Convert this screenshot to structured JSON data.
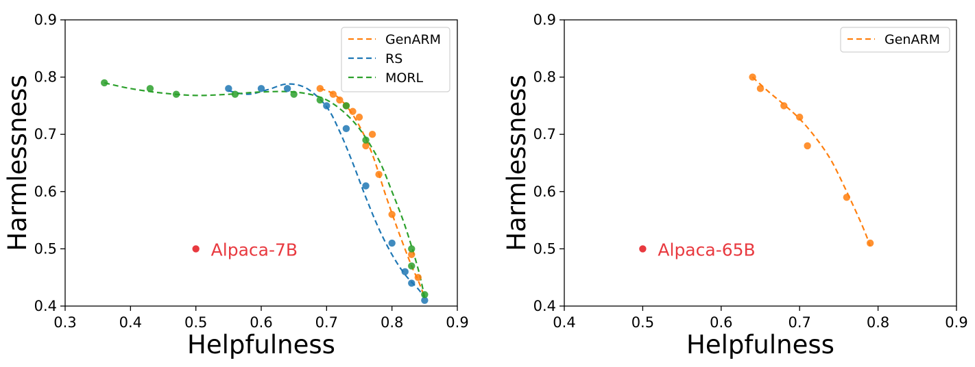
{
  "chart_data": [
    {
      "type": "scatter",
      "xlabel": "Helpfulness",
      "ylabel": "Harmlessness",
      "xlim": [
        0.3,
        0.9
      ],
      "ylim": [
        0.4,
        0.9
      ],
      "xticks": [
        0.3,
        0.4,
        0.5,
        0.6,
        0.7,
        0.8,
        0.9
      ],
      "yticks": [
        0.4,
        0.5,
        0.6,
        0.7,
        0.8,
        0.9
      ],
      "tick_labels_x": [
        "0.3",
        "0.4",
        "0.5",
        "0.6",
        "0.7",
        "0.8",
        "0.9"
      ],
      "tick_labels_y": [
        "0.4",
        "0.5",
        "0.6",
        "0.7",
        "0.8",
        "0.9"
      ],
      "grid": false,
      "legend": "top-right",
      "series": [
        {
          "name": "GenARM",
          "color": "#ff7f0e",
          "x": [
            0.69,
            0.71,
            0.72,
            0.73,
            0.74,
            0.75,
            0.76,
            0.77,
            0.78,
            0.8,
            0.83,
            0.84
          ],
          "y": [
            0.78,
            0.77,
            0.76,
            0.75,
            0.74,
            0.73,
            0.68,
            0.7,
            0.63,
            0.56,
            0.49,
            0.45
          ],
          "fit": [
            [
              0.69,
              0.78
            ],
            [
              0.71,
              0.771
            ],
            [
              0.73,
              0.75
            ],
            [
              0.75,
              0.715
            ],
            [
              0.77,
              0.665
            ],
            [
              0.79,
              0.595
            ],
            [
              0.81,
              0.53
            ],
            [
              0.83,
              0.47
            ],
            [
              0.84,
              0.445
            ],
            [
              0.85,
              0.415
            ]
          ]
        },
        {
          "name": "RS",
          "color": "#1f77b4",
          "x": [
            0.55,
            0.6,
            0.64,
            0.7,
            0.73,
            0.76,
            0.8,
            0.82,
            0.83,
            0.85
          ],
          "y": [
            0.78,
            0.78,
            0.78,
            0.75,
            0.71,
            0.61,
            0.51,
            0.46,
            0.44,
            0.41
          ],
          "fit": [
            [
              0.55,
              0.776
            ],
            [
              0.58,
              0.77
            ],
            [
              0.61,
              0.778
            ],
            [
              0.64,
              0.788
            ],
            [
              0.67,
              0.78
            ],
            [
              0.7,
              0.748
            ],
            [
              0.72,
              0.705
            ],
            [
              0.74,
              0.65
            ],
            [
              0.76,
              0.59
            ],
            [
              0.78,
              0.535
            ],
            [
              0.8,
              0.49
            ],
            [
              0.82,
              0.455
            ],
            [
              0.84,
              0.43
            ],
            [
              0.85,
              0.415
            ]
          ]
        },
        {
          "name": "MORL",
          "color": "#2ca02c",
          "x": [
            0.36,
            0.43,
            0.47,
            0.56,
            0.65,
            0.69,
            0.73,
            0.76,
            0.83,
            0.83,
            0.85
          ],
          "y": [
            0.79,
            0.78,
            0.77,
            0.77,
            0.77,
            0.76,
            0.75,
            0.69,
            0.5,
            0.47,
            0.42
          ],
          "fit": [
            [
              0.36,
              0.79
            ],
            [
              0.4,
              0.78
            ],
            [
              0.45,
              0.772
            ],
            [
              0.5,
              0.768
            ],
            [
              0.55,
              0.77
            ],
            [
              0.6,
              0.774
            ],
            [
              0.65,
              0.774
            ],
            [
              0.69,
              0.765
            ],
            [
              0.72,
              0.745
            ],
            [
              0.75,
              0.71
            ],
            [
              0.78,
              0.655
            ],
            [
              0.8,
              0.6
            ],
            [
              0.82,
              0.54
            ],
            [
              0.84,
              0.465
            ],
            [
              0.85,
              0.415
            ]
          ]
        }
      ],
      "reference_point": {
        "label": "Alpaca-7B",
        "x": 0.5,
        "y": 0.5,
        "color": "#e8393f"
      }
    },
    {
      "type": "scatter",
      "xlabel": "Helpfulness",
      "ylabel": "Harmlessness",
      "xlim": [
        0.4,
        0.9
      ],
      "ylim": [
        0.4,
        0.9
      ],
      "xticks": [
        0.4,
        0.5,
        0.6,
        0.7,
        0.8,
        0.9
      ],
      "yticks": [
        0.4,
        0.5,
        0.6,
        0.7,
        0.8,
        0.9
      ],
      "tick_labels_x": [
        "0.4",
        "0.5",
        "0.6",
        "0.7",
        "0.8",
        "0.9"
      ],
      "tick_labels_y": [
        "0.4",
        "0.5",
        "0.6",
        "0.7",
        "0.8",
        "0.9"
      ],
      "grid": false,
      "legend": "top-right",
      "series": [
        {
          "name": "GenARM",
          "color": "#ff7f0e",
          "x": [
            0.64,
            0.65,
            0.68,
            0.7,
            0.71,
            0.76,
            0.79
          ],
          "y": [
            0.8,
            0.78,
            0.75,
            0.73,
            0.68,
            0.59,
            0.51
          ],
          "fit": [
            [
              0.64,
              0.8
            ],
            [
              0.66,
              0.775
            ],
            [
              0.68,
              0.752
            ],
            [
              0.7,
              0.727
            ],
            [
              0.72,
              0.695
            ],
            [
              0.74,
              0.655
            ],
            [
              0.76,
              0.6
            ],
            [
              0.78,
              0.54
            ],
            [
              0.79,
              0.505
            ]
          ]
        }
      ],
      "reference_point": {
        "label": "Alpaca-65B",
        "x": 0.5,
        "y": 0.5,
        "color": "#e8393f"
      }
    }
  ]
}
